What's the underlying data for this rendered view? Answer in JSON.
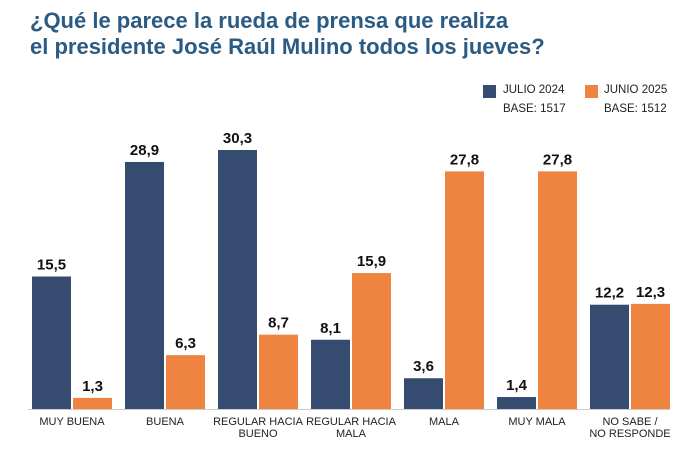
{
  "header": {
    "title_line1": "¿Qué le parece la rueda de prensa que realiza",
    "title_line2": "el presidente José Raúl Mulino todos los jueves?"
  },
  "legend": {
    "s1_label": "JULIO 2024",
    "s1_base": "BASE: 1517",
    "s2_label": "JUNIO 2025",
    "s2_base": "BASE: 1512"
  },
  "colors": {
    "s1": "#354c70",
    "s2": "#ee8440"
  },
  "chart_data": {
    "type": "bar",
    "title": "¿Qué le parece la rueda de prensa que realiza el presidente José Raúl Mulino todos los jueves?",
    "categories": [
      [
        "MUY BUENA"
      ],
      [
        "BUENA"
      ],
      [
        "REGULAR HACIA",
        "BUENO"
      ],
      [
        "REGULAR HACIA",
        "MALA"
      ],
      [
        "MALA"
      ],
      [
        "MUY MALA"
      ],
      [
        "NO SABE /",
        "NO RESPONDE"
      ]
    ],
    "series": [
      {
        "name": "JULIO 2024",
        "values": [
          15.5,
          28.9,
          30.3,
          8.1,
          3.6,
          1.4,
          12.2
        ],
        "labels": [
          "15,5",
          "28,9",
          "30,3",
          "8,1",
          "3,6",
          "1,4",
          "12,2"
        ]
      },
      {
        "name": "JUNIO 2025",
        "values": [
          1.3,
          6.3,
          8.7,
          15.9,
          27.8,
          27.8,
          12.3
        ],
        "labels": [
          "1,3",
          "6,3",
          "8,7",
          "15,9",
          "27,8",
          "27,8",
          "12,3"
        ]
      }
    ],
    "ylim": [
      0,
      30.3
    ],
    "xlabel": "",
    "ylabel": ""
  }
}
